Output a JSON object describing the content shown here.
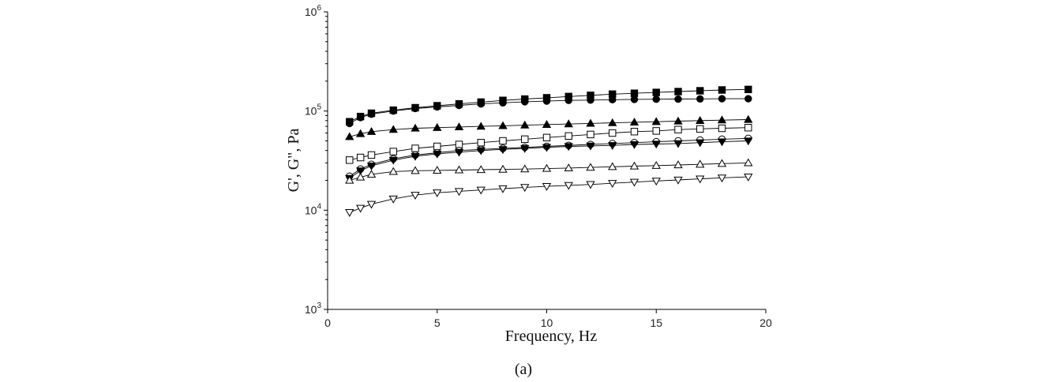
{
  "chart_data": {
    "type": "scatter",
    "title": "",
    "caption": "(a)",
    "xlabel": "Frequency, Hz",
    "ylabel": "G', G\", Pa",
    "xlim": [
      0,
      20
    ],
    "ylim": [
      1000,
      1000000
    ],
    "yscale": "log",
    "grid": false,
    "legend": "none",
    "x_ticks": [
      {
        "value": 0,
        "label": "0"
      },
      {
        "value": 5,
        "label": "5"
      },
      {
        "value": 10,
        "label": "10"
      },
      {
        "value": 15,
        "label": "15"
      },
      {
        "value": 20,
        "label": "20"
      }
    ],
    "y_ticks": [
      {
        "value": 1000,
        "base": "10",
        "exp": "3"
      },
      {
        "value": 10000,
        "base": "10",
        "exp": "4"
      },
      {
        "value": 100000,
        "base": "10",
        "exp": "5"
      },
      {
        "value": 1000000,
        "base": "10",
        "exp": "6"
      }
    ],
    "x": [
      1.0,
      1.5,
      2.0,
      3.0,
      4.0,
      5.0,
      6.0,
      7.0,
      8.0,
      9.0,
      10.0,
      11.0,
      12.0,
      13.0,
      14.0,
      15.0,
      16.0,
      17.0,
      18.0,
      19.2
    ],
    "series": [
      {
        "marker": "square",
        "filled": true,
        "values": [
          78000,
          88000,
          95000,
          102000,
          108000,
          113000,
          118000,
          123000,
          128000,
          132000,
          136000,
          140000,
          144000,
          148000,
          151000,
          154000,
          157000,
          160000,
          163000,
          165000
        ]
      },
      {
        "marker": "circle",
        "filled": true,
        "values": [
          75000,
          86000,
          93000,
          100000,
          106000,
          110000,
          114000,
          118000,
          121000,
          124000,
          126000,
          128000,
          129000,
          130000,
          131000,
          131500,
          132000,
          132500,
          133000,
          133000
        ]
      },
      {
        "marker": "triangle-up",
        "filled": true,
        "values": [
          55000,
          59000,
          62000,
          65000,
          67000,
          68000,
          69000,
          70000,
          71000,
          72000,
          73000,
          74000,
          75000,
          76000,
          77000,
          78000,
          79000,
          80000,
          81000,
          82000
        ]
      },
      {
        "marker": "square",
        "filled": false,
        "values": [
          32000,
          34000,
          36000,
          39000,
          42000,
          44000,
          46000,
          48000,
          50000,
          52000,
          54000,
          56000,
          58000,
          60000,
          62000,
          63000,
          65000,
          66000,
          67000,
          68000
        ]
      },
      {
        "marker": "circle",
        "filled": false,
        "values": [
          22000,
          26000,
          29000,
          33000,
          36000,
          38000,
          40000,
          41000,
          42000,
          43000,
          44000,
          45000,
          46000,
          47000,
          48000,
          49000,
          50000,
          51000,
          52000,
          53000
        ]
      },
      {
        "marker": "triangle-down",
        "filled": true,
        "values": [
          21000,
          25000,
          28000,
          32000,
          35000,
          37000,
          38500,
          40000,
          41000,
          42000,
          43000,
          44000,
          44500,
          45000,
          46000,
          46500,
          47000,
          48000,
          49000,
          50000
        ]
      },
      {
        "marker": "triangle-up",
        "filled": false,
        "values": [
          20000,
          21500,
          23000,
          24500,
          25000,
          25200,
          25400,
          25600,
          25800,
          26000,
          26300,
          26600,
          27000,
          27400,
          27800,
          28200,
          28600,
          29000,
          29500,
          30000
        ]
      },
      {
        "marker": "triangle-down",
        "filled": false,
        "values": [
          9500,
          10500,
          11500,
          13000,
          14200,
          15000,
          15500,
          16000,
          16500,
          17000,
          17400,
          17800,
          18200,
          18700,
          19200,
          19700,
          20200,
          20700,
          21200,
          21700
        ]
      }
    ]
  }
}
